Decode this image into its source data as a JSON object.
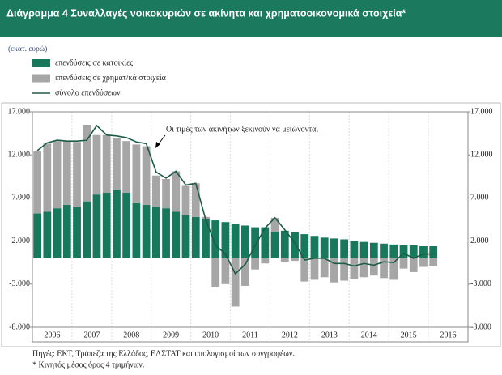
{
  "chart_data": {
    "type": "stacked_bar_line",
    "title": "Διάγραμμα 4  Συναλλαγές νοικοκυριών σε ακίνητα και χρηματοοικονομικά στοιχεία*",
    "y_label": "(εκατ. ευρώ)",
    "annotation": "Οι τιμές των ακινήτων ξεκινούν να μειώνονται",
    "source": "Πηγές: ΕΚΤ, Τράπεζα της Ελλάδος, ΕΛΣΤΑΤ και υπολογισμοί των συγγραφέων.",
    "note": "* Κινητός μέσος όρος 4 τριμήνων.",
    "categories": [
      "2006",
      null,
      null,
      null,
      "2007",
      null,
      null,
      null,
      "2008",
      null,
      null,
      null,
      "2009",
      null,
      null,
      null,
      "2010",
      null,
      null,
      null,
      "2011",
      null,
      null,
      null,
      "2012",
      null,
      null,
      null,
      "2013",
      null,
      null,
      null,
      "2014",
      null,
      null,
      null,
      "2015",
      null,
      null,
      null,
      "2016",
      null,
      null,
      null
    ],
    "series": [
      {
        "name": "επενδύσεις σε κατοικίες",
        "kind": "bar",
        "color": "#17785b",
        "values": [
          5200,
          5400,
          5800,
          6200,
          6000,
          6600,
          7400,
          7600,
          8000,
          7600,
          6400,
          6200,
          6000,
          5800,
          5400,
          5000,
          4800,
          4500,
          4400,
          4200,
          4000,
          3800,
          3600,
          3600,
          3000,
          3200,
          3000,
          2800,
          2600,
          2400,
          2300,
          2200,
          2000,
          1900,
          1800,
          1700,
          1600,
          1500,
          1500,
          1400,
          1400,
          null,
          null,
          null
        ]
      },
      {
        "name": "επενδύσεις σε χρηματ/κά στοιχεία",
        "kind": "bar",
        "color": "#a6a6a6",
        "values": [
          7200,
          7900,
          7800,
          7400,
          7500,
          8900,
          6900,
          6700,
          6000,
          6000,
          6800,
          6800,
          3600,
          3400,
          4700,
          3400,
          3900,
          300,
          -3300,
          -3000,
          -5600,
          -3200,
          -1300,
          -600,
          1700,
          -400,
          -300,
          -2700,
          -2500,
          -2200,
          -2800,
          -2600,
          -2400,
          -2200,
          -2000,
          -2300,
          -2500,
          -1200,
          -1600,
          -1000,
          -900,
          null,
          null,
          null
        ]
      },
      {
        "name": "σύνολο επενδύσεων",
        "kind": "line",
        "color": "#1d5c44",
        "values": [
          12500,
          13400,
          13700,
          13600,
          13600,
          13700,
          15400,
          14300,
          14200,
          14000,
          13500,
          13300,
          10000,
          9300,
          10100,
          8500,
          8700,
          4500,
          1500,
          500,
          -1800,
          -700,
          1500,
          3500,
          4700,
          3300,
          1800,
          -200,
          0,
          0,
          -600,
          -600,
          -900,
          -600,
          -800,
          -400,
          -500,
          600,
          0,
          500,
          500,
          null,
          null,
          null
        ]
      }
    ],
    "ylim": [
      -8000,
      17000
    ],
    "yticks": [
      {
        "value": -8000,
        "label": "-8.000"
      },
      {
        "value": -3000,
        "label": "-3.000"
      },
      {
        "value": 2000,
        "label": "2.000"
      },
      {
        "value": 7000,
        "label": "7.000"
      },
      {
        "value": 12000,
        "label": "12.000"
      },
      {
        "value": 17000,
        "label": "17.000"
      }
    ]
  }
}
